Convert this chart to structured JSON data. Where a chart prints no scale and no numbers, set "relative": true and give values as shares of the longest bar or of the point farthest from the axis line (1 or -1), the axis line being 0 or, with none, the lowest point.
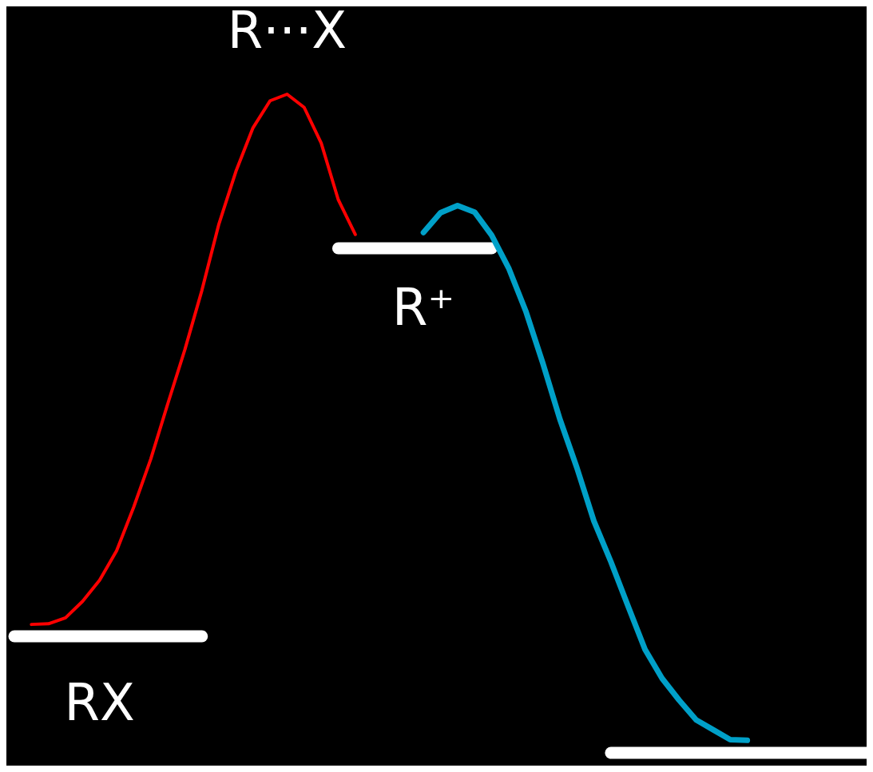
{
  "chart_data": {
    "type": "line",
    "relative": true,
    "categories": [
      null,
      null,
      null,
      null,
      null,
      null,
      null,
      null,
      null,
      null,
      null,
      null,
      null,
      null,
      null,
      null,
      null,
      null,
      null,
      null,
      null,
      null,
      null,
      null,
      null,
      null,
      null,
      null,
      null,
      null,
      null,
      null,
      null,
      null,
      null,
      null,
      null,
      null,
      null,
      null,
      null,
      null,
      null,
      null,
      null,
      null,
      null,
      null,
      null,
      null,
      null
    ],
    "annotations": [
      "R···X",
      "RX",
      "R⁺"
    ],
    "series": [
      {
        "color": "#ff0000",
        "values": [
          null,
          0.195,
          0.196,
          0.205,
          0.23,
          0.262,
          0.307,
          0.373,
          0.446,
          0.53,
          0.612,
          0.702,
          0.803,
          0.883,
          0.949,
          0.99,
          1.0,
          0.98,
          0.926,
          0.84,
          0.787,
          null,
          null,
          null,
          null,
          null,
          null,
          null,
          null,
          null,
          null,
          null,
          null,
          null,
          null,
          null,
          null,
          null,
          null,
          null,
          null,
          null,
          null,
          null,
          null,
          null,
          null,
          null,
          null,
          null,
          null
        ]
      },
      {
        "color": "#00a0c8",
        "values": [
          null,
          null,
          null,
          null,
          null,
          null,
          null,
          null,
          null,
          null,
          null,
          null,
          null,
          null,
          null,
          null,
          null,
          null,
          null,
          null,
          null,
          null,
          null,
          null,
          0.79,
          0.82,
          0.831,
          0.821,
          0.786,
          0.736,
          0.671,
          0.592,
          0.507,
          0.433,
          0.352,
          0.29,
          0.223,
          0.157,
          0.113,
          0.08,
          0.05,
          0.035,
          0.02,
          0.019,
          null,
          null,
          null,
          null,
          null,
          null,
          null
        ]
      },
      {
        "color": "#ffffff",
        "values": [
          0.177,
          0.177,
          0.177,
          0.177,
          0.177,
          0.177,
          0.177,
          0.177,
          0.177,
          0.177,
          0.177,
          0.177,
          null,
          null,
          null,
          null,
          null,
          null,
          null,
          null,
          null,
          null,
          null,
          null,
          null,
          null,
          null,
          null,
          null,
          null,
          null,
          null,
          null,
          null,
          null,
          null,
          null,
          null,
          null,
          null,
          null,
          null,
          null,
          null,
          null,
          null,
          null,
          null,
          null,
          null,
          null
        ]
      },
      {
        "color": "#ffffff",
        "values": [
          null,
          null,
          null,
          null,
          null,
          null,
          null,
          null,
          null,
          null,
          null,
          null,
          null,
          null,
          null,
          null,
          null,
          null,
          null,
          0.766,
          0.766,
          0.766,
          0.766,
          0.766,
          0.766,
          0.766,
          0.766,
          0.766,
          0.766,
          null,
          null,
          null,
          null,
          null,
          null,
          null,
          null,
          null,
          null,
          null,
          null,
          null,
          null,
          null,
          null,
          null,
          null,
          null,
          null,
          null,
          null
        ]
      },
      {
        "color": "#ffffff",
        "values": [
          null,
          null,
          null,
          null,
          null,
          null,
          null,
          null,
          null,
          null,
          null,
          null,
          null,
          null,
          null,
          null,
          null,
          null,
          null,
          null,
          null,
          null,
          null,
          null,
          null,
          null,
          null,
          null,
          null,
          null,
          null,
          null,
          null,
          null,
          null,
          0,
          0,
          0,
          0,
          0,
          0,
          0,
          0,
          0,
          0,
          0,
          0,
          0,
          0,
          0,
          0
        ]
      }
    ]
  }
}
